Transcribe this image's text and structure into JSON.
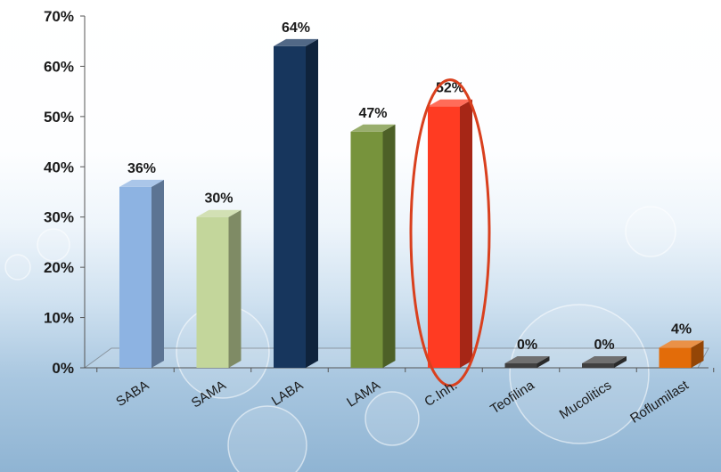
{
  "chart_data": {
    "type": "bar",
    "categories": [
      "SABA",
      "SAMA",
      "LABA",
      "LAMA",
      "C.Inh.",
      "Teofilina",
      "Mucolitics",
      "Roflumilast"
    ],
    "values": [
      36,
      30,
      64,
      47,
      52,
      0,
      0,
      4
    ],
    "value_labels": [
      "36%",
      "30%",
      "64%",
      "47%",
      "52%",
      "0%",
      "0%",
      "4%"
    ],
    "ylim": [
      0,
      70
    ],
    "y_ticks": [
      0,
      10,
      20,
      30,
      40,
      50,
      60,
      70
    ],
    "y_tick_labels": [
      "0%",
      "10%",
      "20%",
      "30%",
      "40%",
      "50%",
      "60%",
      "70%"
    ],
    "colors": [
      "#8db3e2",
      "#c3d69b",
      "#17365d",
      "#77933c",
      "#ff3b22",
      "#404040",
      "#404040",
      "#e36c09"
    ],
    "highlight_index": 4,
    "highlight_color": "#d9401e",
    "grid": false,
    "legend": "none",
    "title": "",
    "xlabel": "",
    "ylabel": ""
  }
}
